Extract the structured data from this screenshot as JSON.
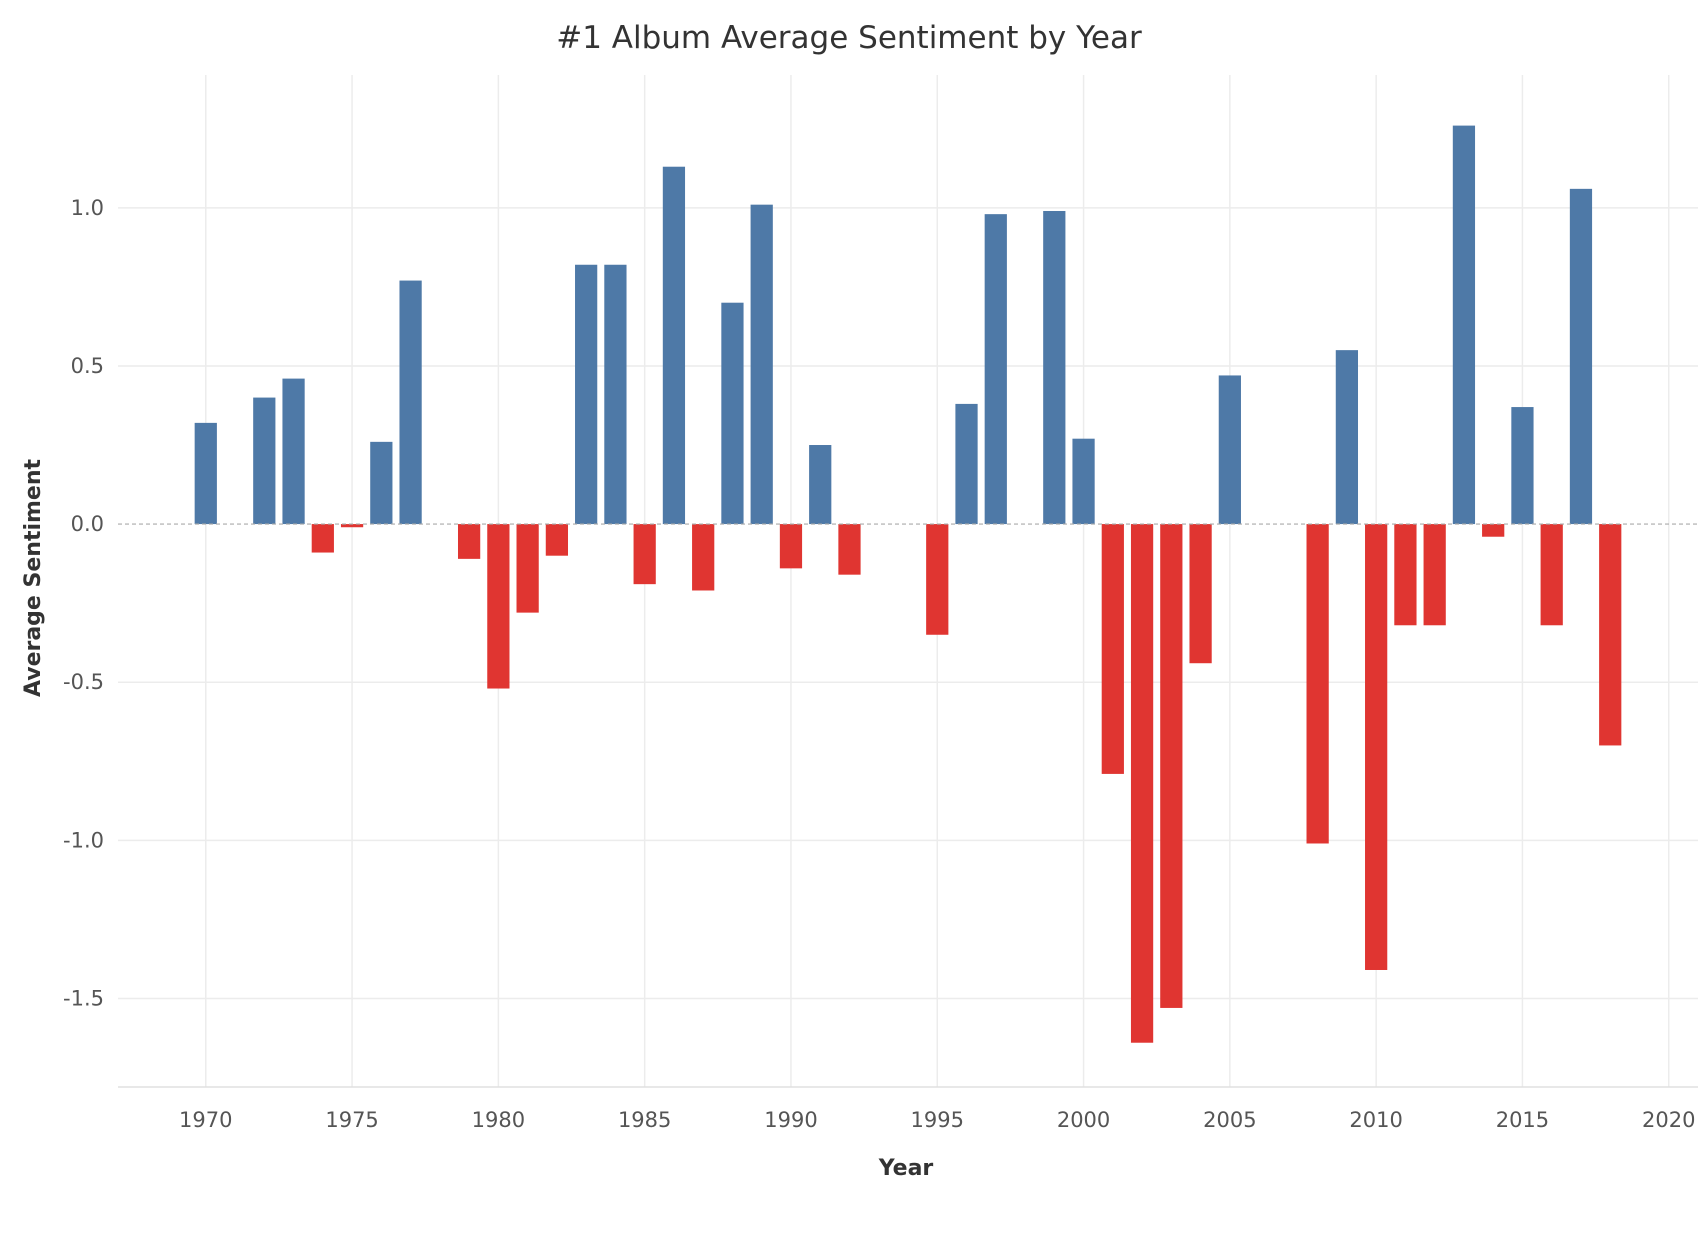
{
  "chart_data": {
    "type": "bar",
    "title": "#1 Album Average Sentiment by Year",
    "xlabel": "Year",
    "ylabel": "Average Sentiment",
    "xlim": [
      1967,
      2021
    ],
    "ylim": [
      -1.78,
      1.42
    ],
    "grid": true,
    "x_ticks": [
      1970,
      1975,
      1980,
      1985,
      1990,
      1995,
      2000,
      2005,
      2010,
      2015,
      2020
    ],
    "y_ticks": [
      {
        "value": 1.0,
        "label": "1.0"
      },
      {
        "value": 0.5,
        "label": "0.5"
      },
      {
        "value": 0.0,
        "label": "0.0"
      },
      {
        "value": -0.5,
        "label": "-0.5"
      },
      {
        "value": -1.0,
        "label": "-1.0"
      },
      {
        "value": -1.5,
        "label": "-1.5"
      }
    ],
    "colors": {
      "positive": "#4e79a7",
      "negative": "#e03531"
    },
    "data": [
      {
        "year": 1970,
        "value": 0.32
      },
      {
        "year": 1972,
        "value": 0.4
      },
      {
        "year": 1973,
        "value": 0.46
      },
      {
        "year": 1974,
        "value": -0.09
      },
      {
        "year": 1975,
        "value": -0.01
      },
      {
        "year": 1976,
        "value": 0.26
      },
      {
        "year": 1977,
        "value": 0.77
      },
      {
        "year": 1979,
        "value": -0.11
      },
      {
        "year": 1980,
        "value": -0.52
      },
      {
        "year": 1981,
        "value": -0.28
      },
      {
        "year": 1982,
        "value": -0.1
      },
      {
        "year": 1983,
        "value": 0.82
      },
      {
        "year": 1984,
        "value": 0.82
      },
      {
        "year": 1985,
        "value": -0.19
      },
      {
        "year": 1986,
        "value": 1.13
      },
      {
        "year": 1987,
        "value": -0.21
      },
      {
        "year": 1988,
        "value": 0.7
      },
      {
        "year": 1989,
        "value": 1.01
      },
      {
        "year": 1990,
        "value": -0.14
      },
      {
        "year": 1991,
        "value": 0.25
      },
      {
        "year": 1992,
        "value": -0.16
      },
      {
        "year": 1995,
        "value": -0.35
      },
      {
        "year": 1996,
        "value": 0.38
      },
      {
        "year": 1997,
        "value": 0.98
      },
      {
        "year": 1999,
        "value": 0.99
      },
      {
        "year": 2000,
        "value": 0.27
      },
      {
        "year": 2001,
        "value": -0.79
      },
      {
        "year": 2002,
        "value": -1.64
      },
      {
        "year": 2003,
        "value": -1.53
      },
      {
        "year": 2004,
        "value": -0.44
      },
      {
        "year": 2005,
        "value": 0.47
      },
      {
        "year": 2008,
        "value": -1.01
      },
      {
        "year": 2009,
        "value": 0.55
      },
      {
        "year": 2010,
        "value": -1.41
      },
      {
        "year": 2011,
        "value": -0.32
      },
      {
        "year": 2012,
        "value": -0.32
      },
      {
        "year": 2013,
        "value": 1.26
      },
      {
        "year": 2014,
        "value": -0.04
      },
      {
        "year": 2015,
        "value": 0.37
      },
      {
        "year": 2016,
        "value": -0.32
      },
      {
        "year": 2017,
        "value": 1.06
      },
      {
        "year": 2018,
        "value": -0.7
      }
    ]
  }
}
